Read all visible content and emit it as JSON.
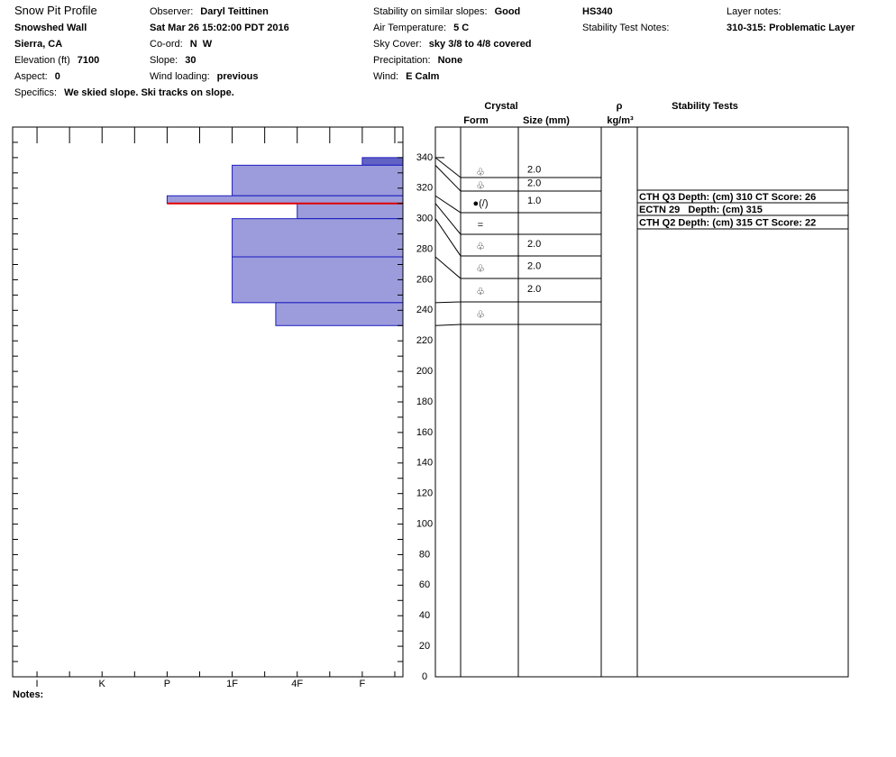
{
  "header": {
    "title": "Snow Pit Profile",
    "site": "Snowshed Wall",
    "region": "Sierra, CA",
    "date": "Sat Mar 26 15:02:00 PDT 2016",
    "hs": "HS340",
    "stability_test_notes_label": "Stability Test Notes:",
    "layer_notes_label": "Layer notes:",
    "layer_note": "310-315: Problematic Layer",
    "fields": [
      {
        "label": "Elevation (ft)",
        "value": 7100
      },
      {
        "label": "Aspect:",
        "value": 0
      },
      {
        "label": "Specifics:",
        "value": "We skied slope. Ski tracks on slope."
      },
      {
        "label": "Observer:",
        "value": "Daryl Teittinen"
      },
      {
        "label": "Co-ord:",
        "value": "N  W"
      },
      {
        "label": "Slope:",
        "value": 30
      },
      {
        "label": "Wind loading:",
        "value": "previous"
      },
      {
        "label": "Stability on similar slopes:",
        "value": "Good"
      },
      {
        "label": "Air Temperature:",
        "value": "5 C"
      },
      {
        "label": "Sky Cover:",
        "value": "sky 3/8 to 4/8 covered"
      },
      {
        "label": "Precipitation:",
        "value": "None"
      },
      {
        "label": "Wind:",
        "value": "E Calm"
      }
    ]
  },
  "chart_data": {
    "type": "hardness_profile",
    "ylim": [
      0,
      360
    ],
    "yticks": [
      0,
      20,
      40,
      60,
      80,
      100,
      120,
      140,
      160,
      180,
      200,
      220,
      240,
      260,
      280,
      300,
      320,
      340
    ],
    "xlim": [
      6.375,
      0.375
    ],
    "xticks": [
      {
        "value": 6,
        "label": "I"
      },
      {
        "value": 5,
        "label": "K"
      },
      {
        "value": 4,
        "label": "P"
      },
      {
        "value": 3,
        "label": "1F"
      },
      {
        "value": 2,
        "label": "4F"
      },
      {
        "value": 1,
        "label": "F"
      }
    ],
    "layers": {
      "top": [
        340,
        335,
        315,
        310,
        300,
        275,
        245
      ],
      "bottom": [
        335,
        315,
        310,
        300,
        275,
        245,
        230
      ],
      "hardness": [
        1,
        3,
        4,
        2,
        3,
        3,
        2.33
      ],
      "colors": [
        "#6262c4",
        "#9c9cdc",
        "#9c9cdc",
        "#9c9cdc",
        "#9c9cdc",
        "#9c9cdc",
        "#9c9cdc"
      ],
      "edge_color": "#1c1cc0"
    },
    "problem_depth": 310,
    "problem_color": "#e00000",
    "notes_label": "Notes:"
  },
  "layer_table": {
    "crystal_header": "Crystal",
    "form_header": "Form",
    "size_header": "Size (mm)",
    "density_header": "ρ",
    "density_unit": "kg/m³",
    "tests_header": "Stability Tests",
    "rows": [
      {
        "form": "♧",
        "size": "2.0"
      },
      {
        "form": "♧",
        "size": "2.0"
      },
      {
        "form": "●(/)",
        "size": "1.0"
      },
      {
        "form": "=",
        "size": null
      },
      {
        "form": "♧",
        "size": "2.0"
      },
      {
        "form": "♧",
        "size": "2.0"
      },
      {
        "form": "♧",
        "size": "2.0"
      },
      {
        "form": "♧",
        "size": null
      }
    ],
    "tests": [
      "CTH Q3 Depth: (cm) 310 CT Score: 26",
      "ECTN 29   Depth: (cm) 315",
      "CTH Q2 Depth: (cm) 315 CT Score: 22"
    ]
  }
}
